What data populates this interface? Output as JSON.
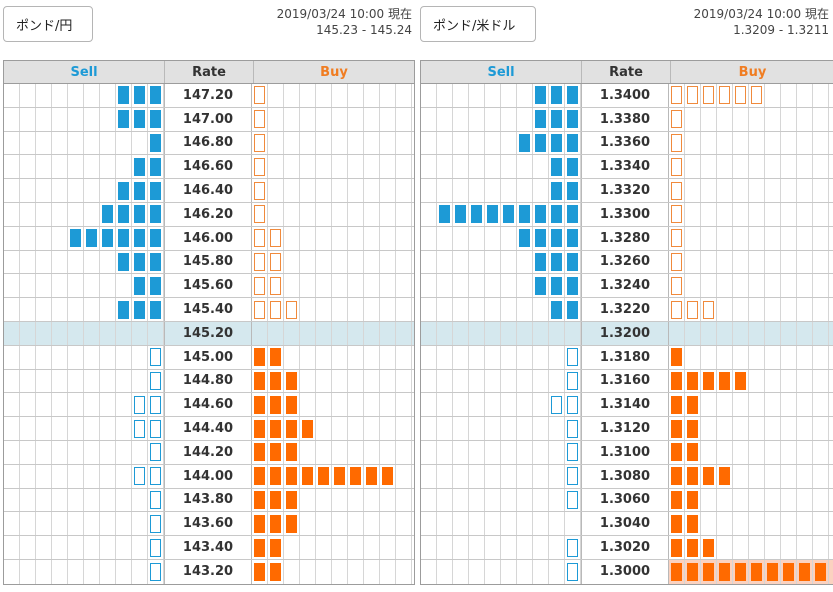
{
  "colors": {
    "sell": "#1d9ad6",
    "buy": "#ff6a00",
    "buy_outline": "#f08a3c",
    "current_row": "#d5e8ee",
    "header_bg": "#e1e1e1",
    "highlight": "#fbd2c0"
  },
  "panels": [
    {
      "pair_label": "ポンド/円",
      "timestamp": "2019/03/24 10:00 現在",
      "bid_ask": "145.23 - 145.24",
      "headers": {
        "sell": "Sell",
        "rate": "Rate",
        "buy": "Buy"
      },
      "rows": [
        {
          "rate": "147.20",
          "sell": 3,
          "sell_style": "fill",
          "buy": 1,
          "buy_style": "open"
        },
        {
          "rate": "147.00",
          "sell": 3,
          "sell_style": "fill",
          "buy": 1,
          "buy_style": "open"
        },
        {
          "rate": "146.80",
          "sell": 1,
          "sell_style": "fill",
          "buy": 1,
          "buy_style": "open"
        },
        {
          "rate": "146.60",
          "sell": 2,
          "sell_style": "fill",
          "buy": 1,
          "buy_style": "open"
        },
        {
          "rate": "146.40",
          "sell": 3,
          "sell_style": "fill",
          "buy": 1,
          "buy_style": "open"
        },
        {
          "rate": "146.20",
          "sell": 4,
          "sell_style": "fill",
          "buy": 1,
          "buy_style": "open"
        },
        {
          "rate": "146.00",
          "sell": 6,
          "sell_style": "fill",
          "buy": 2,
          "buy_style": "open"
        },
        {
          "rate": "145.80",
          "sell": 3,
          "sell_style": "fill",
          "buy": 2,
          "buy_style": "open"
        },
        {
          "rate": "145.60",
          "sell": 2,
          "sell_style": "fill",
          "buy": 2,
          "buy_style": "open"
        },
        {
          "rate": "145.40",
          "sell": 3,
          "sell_style": "fill",
          "buy": 3,
          "buy_style": "open"
        },
        {
          "rate": "145.20",
          "sell": 0,
          "sell_style": "fill",
          "buy": 0,
          "buy_style": "open",
          "current": true
        },
        {
          "rate": "145.00",
          "sell": 1,
          "sell_style": "open",
          "buy": 2,
          "buy_style": "fill"
        },
        {
          "rate": "144.80",
          "sell": 1,
          "sell_style": "open",
          "buy": 3,
          "buy_style": "fill"
        },
        {
          "rate": "144.60",
          "sell": 2,
          "sell_style": "open",
          "buy": 3,
          "buy_style": "fill"
        },
        {
          "rate": "144.40",
          "sell": 2,
          "sell_style": "open",
          "buy": 4,
          "buy_style": "fill"
        },
        {
          "rate": "144.20",
          "sell": 1,
          "sell_style": "open",
          "buy": 3,
          "buy_style": "fill"
        },
        {
          "rate": "144.00",
          "sell": 2,
          "sell_style": "open",
          "buy": 9,
          "buy_style": "fill"
        },
        {
          "rate": "143.80",
          "sell": 1,
          "sell_style": "open",
          "buy": 3,
          "buy_style": "fill"
        },
        {
          "rate": "143.60",
          "sell": 1,
          "sell_style": "open",
          "buy": 3,
          "buy_style": "fill"
        },
        {
          "rate": "143.40",
          "sell": 1,
          "sell_style": "open",
          "buy": 2,
          "buy_style": "fill"
        },
        {
          "rate": "143.20",
          "sell": 1,
          "sell_style": "open",
          "buy": 2,
          "buy_style": "fill"
        }
      ]
    },
    {
      "pair_label": "ポンド/米ドル",
      "timestamp": "2019/03/24 10:00 現在",
      "bid_ask": "1.3209 - 1.3211",
      "headers": {
        "sell": "Sell",
        "rate": "Rate",
        "buy": "Buy"
      },
      "rows": [
        {
          "rate": "1.3400",
          "sell": 3,
          "sell_style": "fill",
          "buy": 6,
          "buy_style": "open"
        },
        {
          "rate": "1.3380",
          "sell": 3,
          "sell_style": "fill",
          "buy": 1,
          "buy_style": "open"
        },
        {
          "rate": "1.3360",
          "sell": 4,
          "sell_style": "fill",
          "buy": 1,
          "buy_style": "open"
        },
        {
          "rate": "1.3340",
          "sell": 2,
          "sell_style": "fill",
          "buy": 1,
          "buy_style": "open"
        },
        {
          "rate": "1.3320",
          "sell": 2,
          "sell_style": "fill",
          "buy": 1,
          "buy_style": "open"
        },
        {
          "rate": "1.3300",
          "sell": 9,
          "sell_style": "fill",
          "buy": 1,
          "buy_style": "open"
        },
        {
          "rate": "1.3280",
          "sell": 4,
          "sell_style": "fill",
          "buy": 1,
          "buy_style": "open"
        },
        {
          "rate": "1.3260",
          "sell": 3,
          "sell_style": "fill",
          "buy": 1,
          "buy_style": "open"
        },
        {
          "rate": "1.3240",
          "sell": 3,
          "sell_style": "fill",
          "buy": 1,
          "buy_style": "open"
        },
        {
          "rate": "1.3220",
          "sell": 2,
          "sell_style": "fill",
          "buy": 3,
          "buy_style": "open"
        },
        {
          "rate": "1.3200",
          "sell": 0,
          "sell_style": "fill",
          "buy": 0,
          "buy_style": "open",
          "current": true
        },
        {
          "rate": "1.3180",
          "sell": 1,
          "sell_style": "open",
          "buy": 1,
          "buy_style": "fill"
        },
        {
          "rate": "1.3160",
          "sell": 1,
          "sell_style": "open",
          "buy": 5,
          "buy_style": "fill"
        },
        {
          "rate": "1.3140",
          "sell": 2,
          "sell_style": "open",
          "buy": 2,
          "buy_style": "fill"
        },
        {
          "rate": "1.3120",
          "sell": 1,
          "sell_style": "open",
          "buy": 2,
          "buy_style": "fill"
        },
        {
          "rate": "1.3100",
          "sell": 1,
          "sell_style": "open",
          "buy": 2,
          "buy_style": "fill"
        },
        {
          "rate": "1.3080",
          "sell": 1,
          "sell_style": "open",
          "buy": 4,
          "buy_style": "fill"
        },
        {
          "rate": "1.3060",
          "sell": 1,
          "sell_style": "open",
          "buy": 2,
          "buy_style": "fill"
        },
        {
          "rate": "1.3040",
          "sell": 0,
          "sell_style": "open",
          "buy": 2,
          "buy_style": "fill"
        },
        {
          "rate": "1.3020",
          "sell": 1,
          "sell_style": "open",
          "buy": 3,
          "buy_style": "fill"
        },
        {
          "rate": "1.3000",
          "sell": 1,
          "sell_style": "open",
          "buy": 10,
          "buy_style": "fill",
          "highlight": true
        }
      ]
    }
  ]
}
